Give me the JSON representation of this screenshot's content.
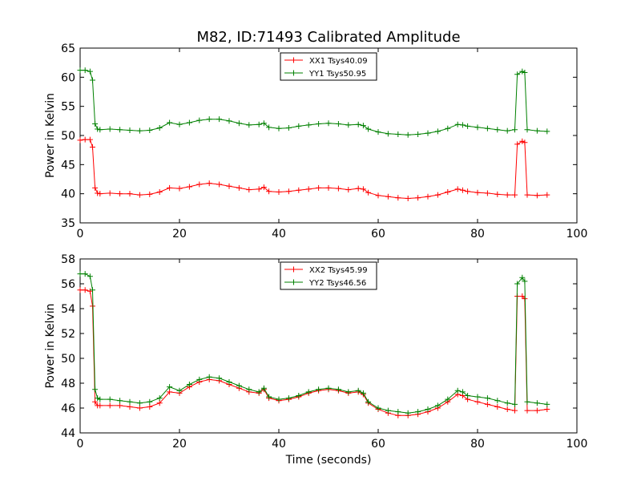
{
  "figure": {
    "title": "M82, ID:71493 Calibrated Amplitude"
  },
  "chart_data": [
    {
      "type": "line",
      "title": "M82, ID:71493 Calibrated Amplitude",
      "xlabel": "",
      "ylabel": "Power in Kelvin",
      "xlim": [
        0,
        100
      ],
      "ylim": [
        35,
        65
      ],
      "xticks": [
        0,
        20,
        40,
        60,
        80,
        100
      ],
      "yticks": [
        35,
        40,
        45,
        50,
        55,
        60,
        65
      ],
      "legend_position": "top-center",
      "grid": false,
      "series": [
        {
          "name": "XX1 Tsys40.09",
          "color": "#ff0000",
          "marker": "+",
          "x": [
            0,
            1,
            2,
            2.5,
            3,
            3.5,
            4,
            6,
            8,
            10,
            12,
            14,
            16,
            18,
            20,
            22,
            24,
            26,
            28,
            30,
            32,
            34,
            36,
            37,
            38,
            40,
            42,
            44,
            46,
            48,
            50,
            52,
            54,
            56,
            57,
            58,
            60,
            62,
            64,
            66,
            68,
            70,
            72,
            74,
            76,
            77,
            78,
            80,
            82,
            84,
            86,
            87.5,
            88,
            89,
            89.5,
            90,
            92,
            94
          ],
          "y": [
            49.2,
            49.3,
            49.3,
            48,
            41,
            40.1,
            40.0,
            40.1,
            40.0,
            40.0,
            39.8,
            39.9,
            40.3,
            41.0,
            40.9,
            41.2,
            41.6,
            41.8,
            41.6,
            41.3,
            41.0,
            40.7,
            40.8,
            41.1,
            40.4,
            40.3,
            40.4,
            40.6,
            40.8,
            41.0,
            41.0,
            40.9,
            40.7,
            40.9,
            40.8,
            40.2,
            39.7,
            39.5,
            39.3,
            39.2,
            39.3,
            39.5,
            39.8,
            40.3,
            40.8,
            40.6,
            40.4,
            40.2,
            40.1,
            39.9,
            39.8,
            39.8,
            48.5,
            49.0,
            48.8,
            39.8,
            39.7,
            39.8
          ]
        },
        {
          "name": "YY1 Tsys50.95",
          "color": "#008000",
          "marker": "+",
          "x": [
            0,
            1,
            2,
            2.5,
            3,
            3.5,
            4,
            6,
            8,
            10,
            12,
            14,
            16,
            18,
            20,
            22,
            24,
            26,
            28,
            30,
            32,
            34,
            36,
            37,
            38,
            40,
            42,
            44,
            46,
            48,
            50,
            52,
            54,
            56,
            57,
            58,
            60,
            62,
            64,
            66,
            68,
            70,
            72,
            74,
            76,
            77,
            78,
            80,
            82,
            84,
            86,
            87.5,
            88,
            89,
            89.5,
            90,
            92,
            94
          ],
          "y": [
            61.2,
            61.2,
            61.0,
            59.5,
            52.0,
            51.1,
            51.0,
            51.1,
            51.0,
            50.9,
            50.8,
            50.9,
            51.3,
            52.2,
            51.9,
            52.2,
            52.6,
            52.8,
            52.8,
            52.5,
            52.1,
            51.8,
            51.9,
            52.1,
            51.4,
            51.2,
            51.3,
            51.6,
            51.8,
            52.0,
            52.1,
            52.0,
            51.8,
            51.9,
            51.7,
            51.1,
            50.6,
            50.3,
            50.2,
            50.1,
            50.2,
            50.4,
            50.7,
            51.2,
            51.9,
            51.8,
            51.6,
            51.4,
            51.2,
            51.0,
            50.8,
            51.0,
            60.5,
            61.0,
            60.8,
            51.0,
            50.8,
            50.7
          ]
        }
      ]
    },
    {
      "type": "line",
      "title": "",
      "xlabel": "Time (seconds)",
      "ylabel": "Power in Kelvin",
      "xlim": [
        0,
        100
      ],
      "ylim": [
        44,
        58
      ],
      "xticks": [
        0,
        20,
        40,
        60,
        80,
        100
      ],
      "yticks": [
        44,
        46,
        48,
        50,
        52,
        54,
        56,
        58
      ],
      "legend_position": "top-center",
      "grid": false,
      "series": [
        {
          "name": "XX2 Tsys45.99",
          "color": "#ff0000",
          "marker": "+",
          "x": [
            0,
            1,
            2,
            2.5,
            3,
            3.5,
            4,
            6,
            8,
            10,
            12,
            14,
            16,
            18,
            20,
            22,
            24,
            26,
            28,
            30,
            32,
            34,
            36,
            37,
            38,
            40,
            42,
            44,
            46,
            48,
            50,
            52,
            54,
            56,
            57,
            58,
            60,
            62,
            64,
            66,
            68,
            70,
            72,
            74,
            76,
            77,
            78,
            80,
            82,
            84,
            86,
            87.5,
            88,
            89,
            89.5,
            90,
            92,
            94
          ],
          "y": [
            55.5,
            55.5,
            55.4,
            54.2,
            46.5,
            46.2,
            46.2,
            46.2,
            46.2,
            46.1,
            46.0,
            46.1,
            46.4,
            47.3,
            47.2,
            47.7,
            48.1,
            48.3,
            48.2,
            47.9,
            47.6,
            47.3,
            47.2,
            47.5,
            46.8,
            46.6,
            46.7,
            46.9,
            47.2,
            47.4,
            47.5,
            47.4,
            47.2,
            47.3,
            47.1,
            46.4,
            45.9,
            45.6,
            45.4,
            45.4,
            45.5,
            45.7,
            46.0,
            46.5,
            47.1,
            47.0,
            46.7,
            46.5,
            46.3,
            46.1,
            45.9,
            45.8,
            55.0,
            55.0,
            54.8,
            45.8,
            45.8,
            45.9
          ]
        },
        {
          "name": "YY2 Tsys46.56",
          "color": "#008000",
          "marker": "+",
          "x": [
            0,
            1,
            2,
            2.5,
            3,
            3.5,
            4,
            6,
            8,
            10,
            12,
            14,
            16,
            18,
            20,
            22,
            24,
            26,
            28,
            30,
            32,
            34,
            36,
            37,
            38,
            40,
            42,
            44,
            46,
            48,
            50,
            52,
            54,
            56,
            57,
            58,
            60,
            62,
            64,
            66,
            68,
            70,
            72,
            74,
            76,
            77,
            78,
            80,
            82,
            84,
            86,
            87.5,
            88,
            89,
            89.5,
            90,
            92,
            94
          ],
          "y": [
            56.8,
            56.8,
            56.6,
            55.5,
            47.5,
            46.8,
            46.7,
            46.7,
            46.6,
            46.5,
            46.4,
            46.5,
            46.8,
            47.7,
            47.4,
            47.9,
            48.3,
            48.5,
            48.4,
            48.1,
            47.8,
            47.5,
            47.3,
            47.6,
            46.9,
            46.7,
            46.8,
            47.0,
            47.3,
            47.5,
            47.6,
            47.5,
            47.3,
            47.4,
            47.2,
            46.5,
            46.0,
            45.8,
            45.7,
            45.6,
            45.7,
            45.9,
            46.2,
            46.7,
            47.4,
            47.3,
            47.0,
            46.9,
            46.8,
            46.6,
            46.4,
            46.3,
            56.0,
            56.5,
            56.2,
            46.5,
            46.4,
            46.3
          ]
        }
      ]
    }
  ]
}
